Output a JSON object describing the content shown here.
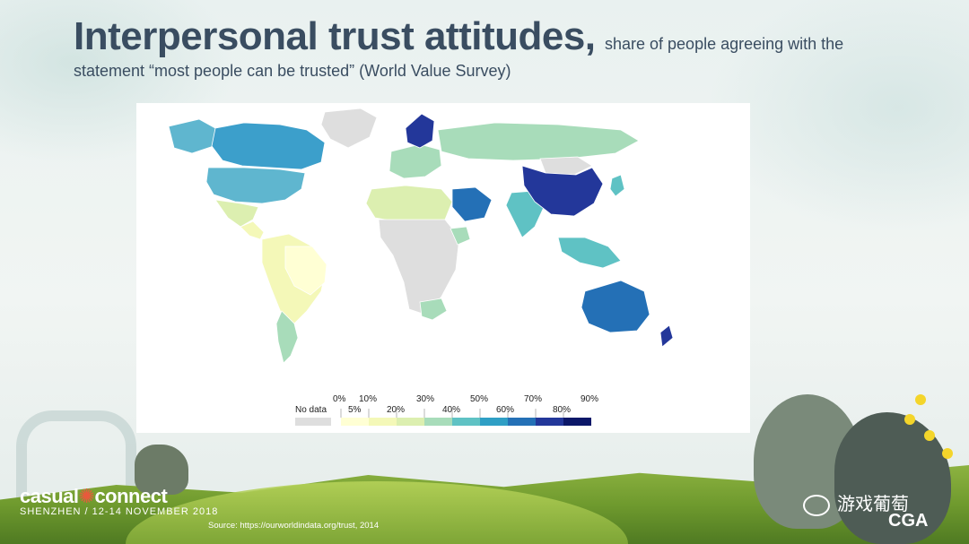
{
  "slide": {
    "title": "Interpersonal trust attitudes,",
    "subtitle_part1": "share of people agreeing with the",
    "subtitle_part2": "statement “most people can be trusted” (World Value Survey)",
    "source": "Source: https://ourworldindata.org/trust, 2014"
  },
  "legend": {
    "no_data_label": "No data",
    "top_labels": [
      "0%",
      "10%",
      "30%",
      "50%",
      "70%",
      "90%"
    ],
    "bottom_labels": [
      "5%",
      "20%",
      "40%",
      "60%",
      "80%"
    ],
    "colors": [
      "#ffffd4",
      "#f4f8b8",
      "#dcefb0",
      "#a8dcba",
      "#5fc2c4",
      "#2f9fc5",
      "#2470b6",
      "#23379a",
      "#0b1768"
    ],
    "no_data_color": "#dedede"
  },
  "map_colors": {
    "north_america": "#5fb6cf",
    "canada": "#3c9fcb",
    "mexico": "#dcefb0",
    "central_america": "#f4f8b8",
    "south_america": "#f4f8b8",
    "argentina": "#a8dcba",
    "brazil": "#ffffd4",
    "greenland": "#dedede",
    "africa": "#dedede",
    "north_africa": "#dcefb0",
    "south_africa": "#a8dcba",
    "ethiopia": "#a8dcba",
    "europe": "#a8dcba",
    "scandinavia": "#23379a",
    "russia": "#a8dcba",
    "middle_east": "#2470b6",
    "india": "#5fc2c4",
    "china": "#23379a",
    "mongolia": "#dedede",
    "japan": "#5fc2c4",
    "southeast_asia": "#5fc2c4",
    "australia": "#2470b6",
    "new_zealand": "#23379a",
    "ocean": "#ffffff"
  },
  "branding": {
    "event_name_a": "casual",
    "event_name_b": "connect",
    "event_details": "SHENZHEN / 12-14 NOVEMBER 2018",
    "wechat_name": "游戏葡萄",
    "cga": "CGA"
  }
}
